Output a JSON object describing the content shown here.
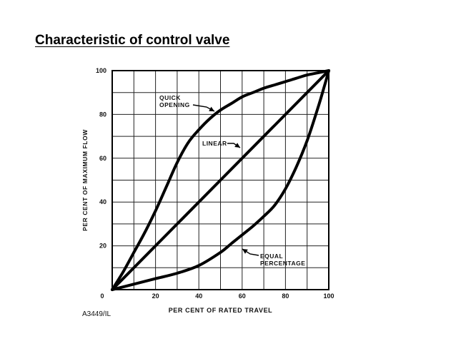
{
  "slide": {
    "title": "Characteristic of control valve",
    "figure_code": "A3449/IL"
  },
  "chart_data": {
    "type": "line",
    "title": "",
    "xlabel": "PER CENT OF RATED TRAVEL",
    "ylabel": "PER CENT OF MAXIMUM FLOW",
    "xlim": [
      0,
      100
    ],
    "ylim": [
      0,
      100
    ],
    "grid": true,
    "x_ticks": [
      0,
      20,
      40,
      60,
      80,
      100
    ],
    "y_ticks": [
      0,
      20,
      40,
      60,
      80,
      100
    ],
    "series": [
      {
        "name": "QUICK OPENING",
        "label": "QUICK\nOPENING",
        "x": [
          0,
          5,
          10,
          15,
          20,
          25,
          30,
          35,
          40,
          45,
          50,
          55,
          60,
          65,
          70,
          75,
          80,
          85,
          90,
          95,
          100
        ],
        "y": [
          0,
          8,
          17,
          26,
          36,
          47,
          58,
          67,
          73,
          78,
          82,
          85,
          88,
          90,
          92,
          93.5,
          95,
          96.5,
          98,
          99,
          100
        ]
      },
      {
        "name": "LINEAR",
        "label": "LINEAR",
        "x": [
          0,
          100
        ],
        "y": [
          0,
          100
        ]
      },
      {
        "name": "EQUAL PERCENTAGE",
        "label": "EQUAL\nPERCENTAGE",
        "x": [
          0,
          10,
          20,
          30,
          40,
          50,
          55,
          60,
          65,
          70,
          75,
          80,
          85,
          90,
          95,
          98,
          100
        ],
        "y": [
          0,
          2.5,
          5,
          7.5,
          11,
          17,
          21,
          25,
          29,
          33.5,
          38.5,
          46,
          56,
          68,
          83,
          93,
          100
        ]
      }
    ]
  }
}
